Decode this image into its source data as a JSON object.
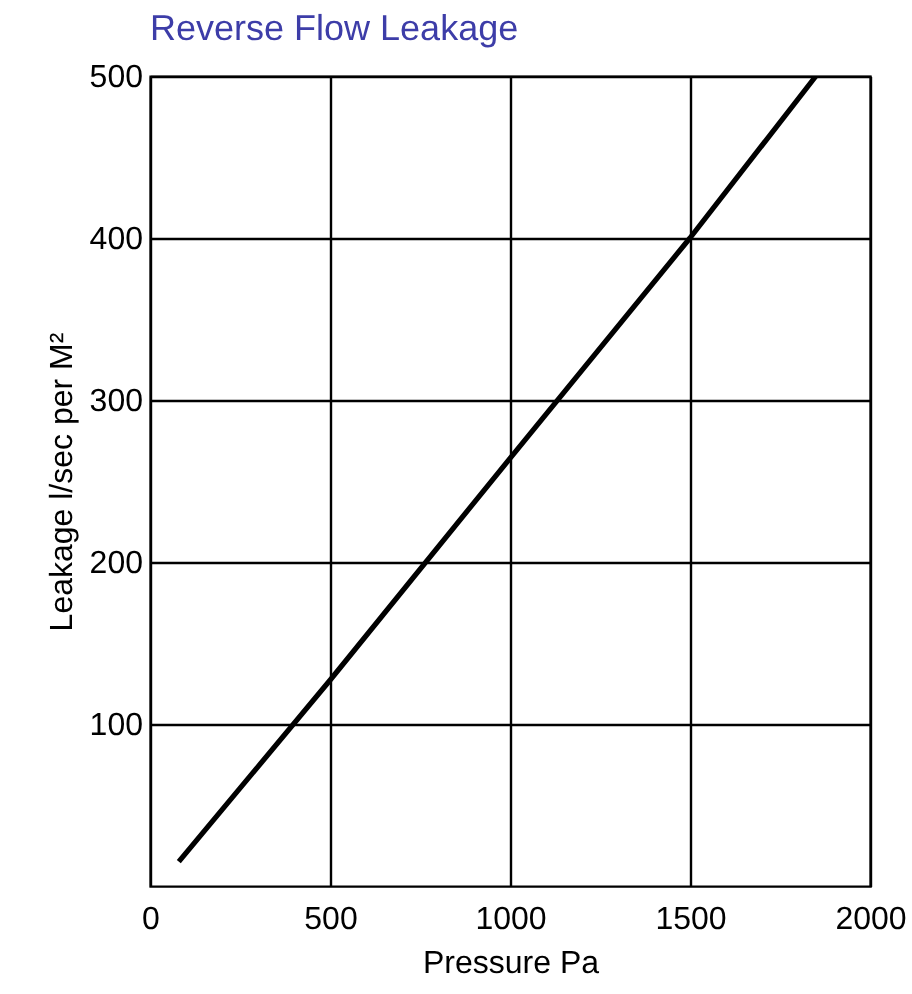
{
  "chart_data": {
    "type": "line",
    "title": "Reverse Flow Leakage",
    "xlabel": "Pressure Pa",
    "ylabel": "Leakage l/sec per M²",
    "x": [
      80,
      500,
      1000,
      1500,
      1850
    ],
    "series": [
      {
        "color": "#000000",
        "values": [
          15,
          127,
          264,
          400,
          500
        ]
      }
    ],
    "xlim": [
      0,
      2000
    ],
    "xticks": [
      0,
      500,
      1000,
      1500,
      2000
    ],
    "ylim": [
      0,
      500
    ],
    "yticks": [
      100,
      200,
      300,
      400,
      500
    ],
    "grid": true,
    "legend": false,
    "marker": "none",
    "line_style": "solid"
  }
}
